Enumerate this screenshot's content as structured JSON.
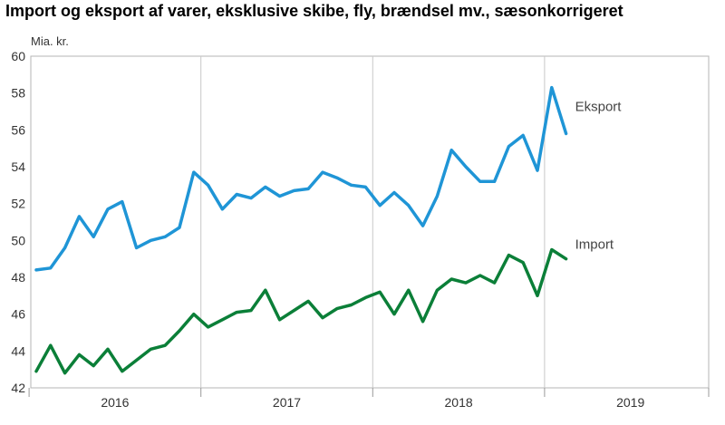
{
  "title": "Import og eksport af varer, eksklusive skibe, fly, brændsel mv., sæsonkorrigeret",
  "chart_data": {
    "type": "line",
    "title": "Import og eksport af varer, eksklusive skibe, fly, brændsel mv., sæsonkorrigeret",
    "ylabel": "Mia. kr.",
    "xlabel": "",
    "ylim": [
      42,
      60
    ],
    "y_ticks": [
      "42",
      "44",
      "46",
      "48",
      "50",
      "52",
      "54",
      "56",
      "58",
      "60"
    ],
    "x_tick_labels": [
      "2016",
      "2017",
      "2018",
      "2019"
    ],
    "x_start": "2016-01",
    "x_end": "2019-12",
    "grid": "vertical lines at year boundaries",
    "series": [
      {
        "name": "Eksport",
        "color": "#1f95d6",
        "values": [
          48.4,
          48.5,
          49.6,
          51.3,
          50.2,
          51.7,
          52.1,
          49.6,
          50.0,
          50.2,
          50.7,
          53.7,
          53.0,
          51.7,
          52.5,
          52.3,
          52.9,
          52.4,
          52.7,
          52.8,
          53.7,
          53.4,
          53.0,
          52.9,
          51.9,
          52.6,
          51.9,
          50.8,
          52.4,
          54.9,
          54.0,
          53.2,
          53.2,
          55.1,
          55.7,
          53.8,
          58.3,
          55.8
        ]
      },
      {
        "name": "Import",
        "color": "#0b7f38",
        "values": [
          42.9,
          44.3,
          42.8,
          43.8,
          43.2,
          44.1,
          42.9,
          43.5,
          44.1,
          44.3,
          45.1,
          46.0,
          45.3,
          45.7,
          46.1,
          46.2,
          47.3,
          45.7,
          46.2,
          46.7,
          45.8,
          46.3,
          46.5,
          46.9,
          47.2,
          46.0,
          47.3,
          45.6,
          47.3,
          47.9,
          47.7,
          48.1,
          47.7,
          49.2,
          48.8,
          47.0,
          49.5,
          49.0
        ]
      }
    ]
  }
}
